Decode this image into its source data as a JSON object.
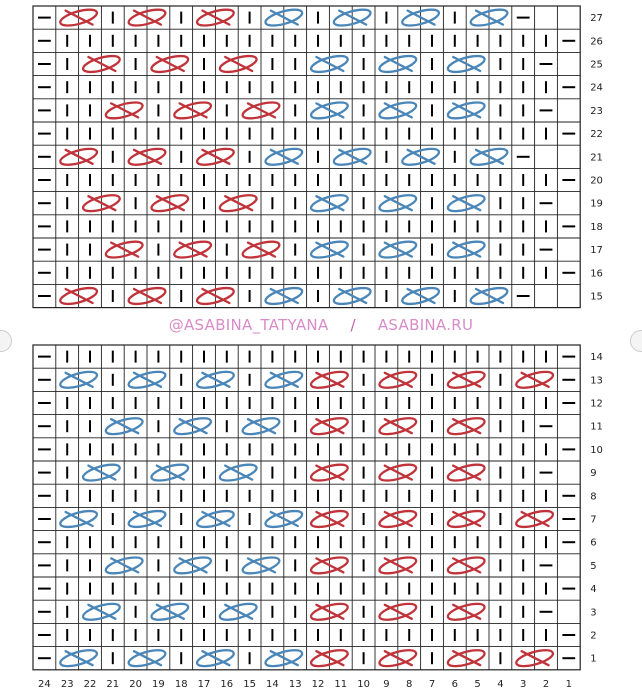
{
  "watermark": {
    "handle": "@ASABINA_TATYANA",
    "separator": "/",
    "site": "ASABINA.RU"
  },
  "colors": {
    "grid": "#222222",
    "red_cable": "#c0333a",
    "blue_cable": "#4a86b8",
    "watermark": "#d98cc8"
  },
  "icons": {
    "dash": "purl-dash-icon",
    "bar": "knit-bar-icon",
    "red": "red-cross-cable-icon",
    "blue": "blue-cross-cable-icon"
  },
  "top_chart": {
    "row_labels": [
      "27",
      "26",
      "25",
      "24",
      "23",
      "22",
      "21",
      "20",
      "19",
      "18",
      "17",
      "16",
      "15"
    ],
    "rows": [
      "- C r | C r | C r | C b | C b | C b | C b -",
      "- | | | | | | | | | | | | | | | | | | | | | | -",
      "- | C r | C r | C r | | C b | C b | C b | | -",
      "- | | | | | | | | | | | | | | | | | | | | | | -",
      "- | | C r | C r | C r | C b | C b | C b | | -",
      "- | | | | | | | | | | | | | | | | | | | | | | -",
      "- C r | C r | C r | C b | C b | C b | C b -",
      "- | | | | | | | | | | | | | | | | | | | | | | -",
      "- | C r | C r | C r | | C b | C b | C b | | -",
      "- | | | | | | | | | | | | | | | | | | | | | | -",
      "- | | C r | C r | C r | C b | C b | C b | | -",
      "- | | | | | | | | | | | | | | | | | | | | | | -",
      "- C r | C r | C r | C b | C b | C b | C b -"
    ]
  },
  "bottom_chart": {
    "row_labels": [
      "14",
      "13",
      "12",
      "11",
      "10",
      "9",
      "8",
      "7",
      "6",
      "5",
      "4",
      "3",
      "2",
      "1"
    ],
    "column_labels": [
      "24",
      "23",
      "22",
      "21",
      "20",
      "19",
      "18",
      "17",
      "16",
      "15",
      "14",
      "13",
      "12",
      "11",
      "10",
      "9",
      "8",
      "7",
      "6",
      "5",
      "4",
      "3",
      "2",
      "1"
    ],
    "rows": [
      "- | | | | | | | | | | | | | | | | | | | | | | -",
      "- C b | C b | C b | C b C r | C r | C r | C r -",
      "- | | | | | | | | | | | | | | | | | | | | | | -",
      "- | | C b | C b | C b | C r | C r | C r | | -",
      "- | | | | | | | | | | | | | | | | | | | | | | -",
      "- | C b | C b | C b | | C r | C r | C r | | -",
      "- | | | | | | | | | | | | | | | | | | | | | | -",
      "- C b | C b | C b | C b C r | C r | C r | C r -",
      "- | | | | | | | | | | | | | | | | | | | | | | -",
      "- | | C b | C b | C b | C r | C r | C r | | -",
      "- | | | | | | | | | | | | | | | | | | | | | | -",
      "- | C b | C b | C b | | C r | C r | C r | | -",
      "- | | | | | | | | | | | | | | | | | | | | | | -",
      "- C b | C b | C b | C b C r | C r | C r | C r -"
    ]
  }
}
